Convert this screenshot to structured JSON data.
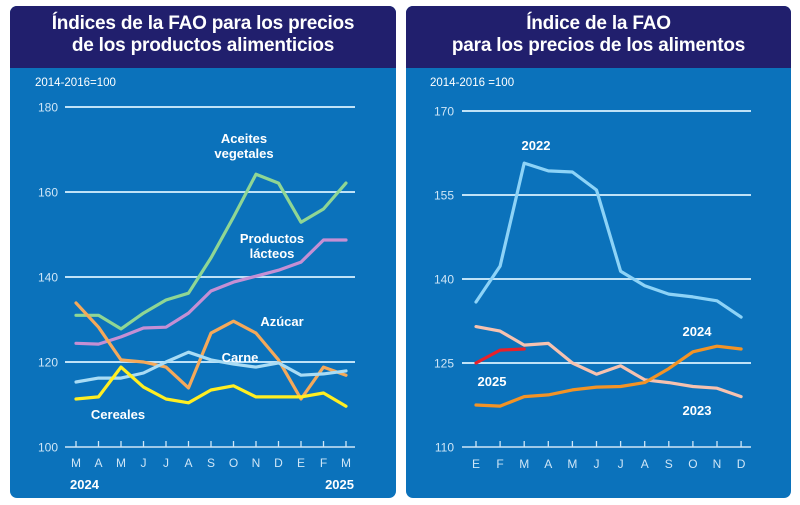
{
  "chart_data": [
    {
      "type": "line",
      "title": "Índices de la FAO para los precios de los productos alimenticios",
      "title_lines": [
        "Índices de la FAO para los precios",
        "de los productos alimenticios"
      ],
      "base_label": "2014-2016=100",
      "xlabel": "",
      "ylabel": "",
      "ylim": [
        100,
        180
      ],
      "yticks": [
        100,
        120,
        140,
        160,
        180
      ],
      "grid": true,
      "categories": [
        "M",
        "A",
        "M",
        "J",
        "J",
        "A",
        "S",
        "O",
        "N",
        "D",
        "E",
        "F",
        "M"
      ],
      "year_labels": [
        {
          "text": "2024",
          "at_index": 0
        },
        {
          "text": "2025",
          "at_index": 12
        }
      ],
      "series": [
        {
          "name": "Aceites vegetales",
          "label_lines": [
            "Aceites",
            "vegetales"
          ],
          "color": "#8fd694",
          "values": [
            131,
            131,
            127.8,
            131.5,
            134.6,
            136.2,
            144.5,
            154.1,
            164.2,
            162.1,
            152.9,
            156,
            162.1
          ]
        },
        {
          "name": "Productos lácteos",
          "label_lines": [
            "Productos",
            "lácteos"
          ],
          "color": "#c58fd4",
          "values": [
            124.4,
            124.2,
            125.9,
            128,
            128.2,
            131.5,
            136.7,
            138.8,
            140.2,
            141.6,
            143.5,
            148.7,
            148.7
          ]
        },
        {
          "name": "Azúcar",
          "label_lines": [
            "Azúcar"
          ],
          "color": "#f5a95a",
          "values": [
            133.9,
            128.2,
            120.5,
            120,
            118.8,
            113.9,
            126.8,
            129.6,
            126.8,
            120.5,
            111.3,
            118.8,
            116.9
          ]
        },
        {
          "name": "Carne",
          "label_lines": [
            "Carne"
          ],
          "color": "#a9dcf5",
          "values": [
            115.3,
            116.2,
            116.2,
            117.4,
            120,
            122.3,
            120.5,
            119.5,
            118.8,
            119.8,
            116.9,
            117.2,
            117.9
          ]
        },
        {
          "name": "Cereales",
          "label_lines": [
            "Cereales"
          ],
          "color": "#ffee22",
          "values": [
            111.3,
            111.8,
            118.8,
            114.1,
            111.3,
            110.4,
            113.4,
            114.4,
            111.8,
            111.8,
            111.8,
            112.7,
            109.6
          ]
        }
      ]
    },
    {
      "type": "line",
      "title": "Índice de la FAO para los precios de los alimentos",
      "title_lines": [
        "Índice de la FAO",
        "para los precios de los alimentos"
      ],
      "base_label": "2014-2016 =100",
      "xlabel": "",
      "ylabel": "",
      "ylim": [
        110,
        170
      ],
      "yticks": [
        110,
        125,
        140,
        155,
        170
      ],
      "grid": true,
      "categories": [
        "E",
        "F",
        "M",
        "A",
        "M",
        "J",
        "J",
        "A",
        "S",
        "O",
        "N",
        "D"
      ],
      "series": [
        {
          "name": "2022",
          "color": "#8dd3f7",
          "values": [
            135.9,
            142.3,
            160.7,
            159.3,
            159.1,
            155.9,
            141.4,
            138.8,
            137.3,
            136.8,
            136.1,
            133.2
          ]
        },
        {
          "name": "2023",
          "color": "#f6c2b0",
          "values": [
            131.5,
            130.7,
            128.2,
            128.5,
            125,
            123,
            124.5,
            122,
            121.5,
            120.8,
            120.5,
            119
          ]
        },
        {
          "name": "2024",
          "color": "#f39325",
          "values": [
            117.5,
            117.3,
            119,
            119.3,
            120.2,
            120.7,
            120.8,
            121.5,
            124,
            127,
            128,
            127.5
          ]
        },
        {
          "name": "2025",
          "color": "#e8212a",
          "values": [
            125,
            127.3,
            127.5
          ]
        }
      ]
    }
  ]
}
